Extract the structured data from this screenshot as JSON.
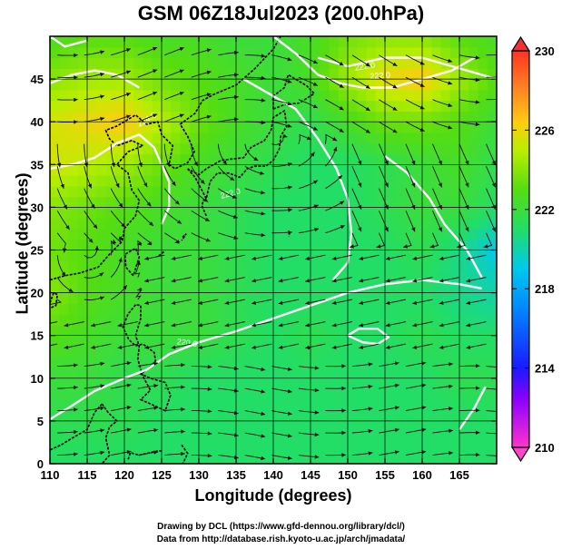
{
  "title": "GSM 06Z18Jul2023 (200.0hPa)",
  "xlabel": "Longitude (degrees)",
  "ylabel": "Latitude  (degrees)",
  "credit_line1": "Drawing by DCL (https://www.gfd-dennou.org/library/dcl/)",
  "credit_line2": "Data from http://database.rish.kyoto-u.ac.jp/arch/jmadata/",
  "chart_data": {
    "type": "heatmap",
    "title": "GSM 06Z18Jul2023 (200.0hPa)",
    "xlabel": "Longitude (degrees)",
    "ylabel": "Latitude  (degrees)",
    "xlim": [
      110,
      170
    ],
    "ylim": [
      0,
      50
    ],
    "x_ticks": [
      "110",
      "115",
      "120",
      "125",
      "130",
      "135",
      "140",
      "145",
      "150",
      "155",
      "160",
      "165"
    ],
    "y_ticks": [
      "0",
      "5",
      "10",
      "15",
      "20",
      "25",
      "30",
      "35",
      "40",
      "45"
    ],
    "grid": true,
    "colorbar": {
      "range": [
        210,
        230
      ],
      "ticks": [
        "210",
        "214",
        "218",
        "222",
        "226",
        "230"
      ]
    },
    "contour_labels": [
      "224.0",
      "222.0",
      "222.0",
      "220.0",
      "222.0"
    ],
    "field_estimates": {
      "lon": [
        110,
        115,
        120,
        125,
        130,
        135,
        140,
        145,
        150,
        155,
        160,
        165,
        170
      ],
      "lat": [
        50,
        45,
        40,
        35,
        30,
        25,
        20,
        15,
        10,
        5,
        0
      ],
      "values": [
        [
          222.5,
          223.0,
          223.0,
          222.5,
          222.5,
          222.0,
          222.0,
          222.5,
          223.5,
          224.0,
          224.0,
          223.0,
          222.5
        ],
        [
          224.0,
          224.5,
          224.5,
          223.5,
          223.0,
          222.5,
          222.0,
          222.5,
          224.5,
          226.0,
          226.5,
          224.5,
          223.0
        ],
        [
          225.5,
          226.0,
          226.5,
          225.0,
          223.5,
          222.5,
          222.0,
          221.5,
          222.5,
          223.5,
          223.5,
          223.0,
          222.0
        ],
        [
          225.5,
          225.0,
          224.5,
          223.5,
          222.5,
          222.0,
          221.5,
          221.0,
          221.0,
          221.5,
          222.0,
          222.5,
          221.5
        ],
        [
          224.0,
          223.5,
          223.0,
          222.5,
          222.0,
          221.5,
          221.0,
          221.0,
          221.0,
          221.5,
          222.0,
          222.0,
          221.0
        ],
        [
          223.5,
          223.0,
          222.5,
          222.0,
          222.0,
          221.5,
          221.0,
          221.0,
          221.0,
          221.0,
          221.5,
          220.5,
          219.0
        ],
        [
          224.0,
          223.0,
          222.5,
          222.0,
          222.0,
          221.5,
          221.0,
          221.0,
          221.0,
          221.0,
          221.0,
          220.5,
          220.0
        ],
        [
          223.0,
          222.5,
          222.0,
          222.0,
          222.0,
          221.5,
          221.0,
          221.5,
          221.0,
          221.0,
          221.5,
          221.0,
          221.0
        ],
        [
          222.0,
          222.0,
          221.5,
          221.5,
          221.0,
          221.0,
          221.0,
          221.0,
          221.0,
          221.0,
          221.0,
          221.5,
          221.5
        ],
        [
          221.5,
          221.5,
          221.5,
          221.0,
          221.0,
          221.0,
          221.0,
          221.0,
          221.0,
          221.0,
          221.0,
          221.0,
          221.0
        ],
        [
          221.0,
          221.0,
          221.0,
          221.0,
          221.0,
          221.0,
          221.0,
          221.0,
          221.0,
          221.0,
          221.0,
          221.0,
          221.0
        ]
      ]
    }
  }
}
